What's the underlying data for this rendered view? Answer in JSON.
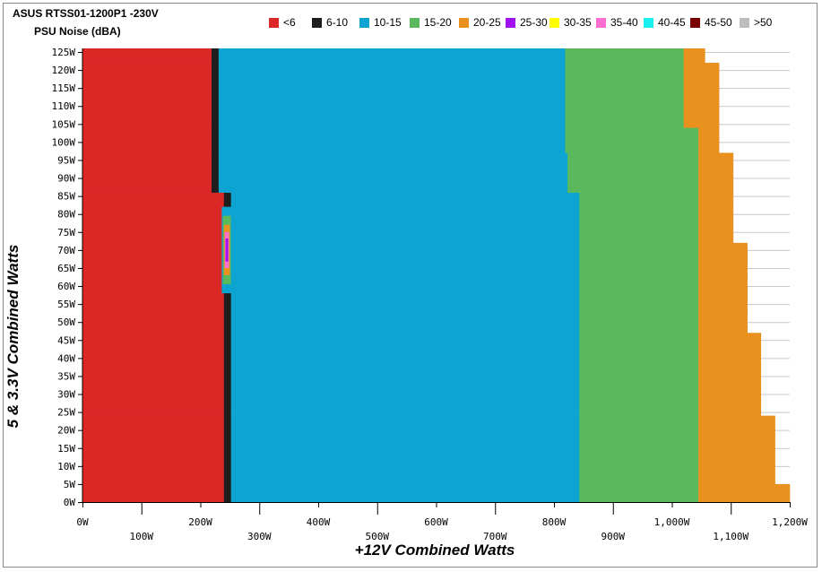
{
  "chart_data": {
    "type": "heatmap",
    "title": "ASUS RTSS01-1200P1 -230V",
    "subtitle": "PSU Noise (dBA)",
    "xlabel": "+12V Combined Watts",
    "ylabel": "5 & 3.3V Combined Watts",
    "xlim": [
      0,
      1200
    ],
    "ylim": [
      0,
      125
    ],
    "x_ticks": [
      0,
      100,
      200,
      300,
      400,
      500,
      600,
      700,
      800,
      900,
      1000,
      1100,
      1200
    ],
    "x_tick_labels": [
      "0W",
      "100W",
      "200W",
      "300W",
      "400W",
      "500W",
      "600W",
      "700W",
      "800W",
      "900W",
      "1,000W",
      "1,100W",
      "1,200W"
    ],
    "y_ticks": [
      0,
      5,
      10,
      15,
      20,
      25,
      30,
      35,
      40,
      45,
      50,
      55,
      60,
      65,
      70,
      75,
      80,
      85,
      90,
      95,
      100,
      105,
      110,
      115,
      120,
      125
    ],
    "y_tick_labels": [
      "0W",
      "5W",
      "10W",
      "15W",
      "20W",
      "25W",
      "30W",
      "35W",
      "40W",
      "45W",
      "50W",
      "55W",
      "60W",
      "65W",
      "70W",
      "75W",
      "80W",
      "85W",
      "90W",
      "95W",
      "100W",
      "105W",
      "110W",
      "115W",
      "120W",
      "125W"
    ],
    "grid": true,
    "legend_position": "top",
    "legend": [
      {
        "label": "<6",
        "color": "#dc2727"
      },
      {
        "label": "6-10",
        "color": "#1e1e1e"
      },
      {
        "label": "10-15",
        "color": "#0ea4d2"
      },
      {
        "label": "15-20",
        "color": "#5ab95c"
      },
      {
        "label": "20-25",
        "color": "#e8911e"
      },
      {
        "label": "25-30",
        "color": "#a013f0"
      },
      {
        "label": "30-35",
        "color": "#ffff00"
      },
      {
        "label": "35-40",
        "color": "#ff6fcf"
      },
      {
        "label": "40-45",
        "color": "#18f0f0"
      },
      {
        "label": "45-50",
        "color": "#7a0000"
      },
      {
        "label": ">50",
        "color": "#bdbdbd"
      }
    ],
    "zones_by_load": [
      {
        "y_range": [
          0,
          5
        ],
        "boundaries": [
          {
            "band": "<6",
            "x_to": 240
          },
          {
            "band": "6-10",
            "x_to": 252
          },
          {
            "band": "10-15",
            "x_to": 843
          },
          {
            "band": "15-20",
            "x_to": 1045
          },
          {
            "band": "20-25",
            "x_to": 1175
          },
          {
            "band": "20-25",
            "x_to": 1200
          }
        ]
      },
      {
        "y_range": [
          5,
          24
        ],
        "boundaries": [
          {
            "band": "<6",
            "x_to": 240
          },
          {
            "band": "6-10",
            "x_to": 252
          },
          {
            "band": "10-15",
            "x_to": 843
          },
          {
            "band": "15-20",
            "x_to": 1045
          },
          {
            "band": "20-25",
            "x_to": 1175
          }
        ]
      },
      {
        "y_range": [
          24,
          47
        ],
        "boundaries": [
          {
            "band": "<6",
            "x_to": 240
          },
          {
            "band": "6-10",
            "x_to": 252
          },
          {
            "band": "10-15",
            "x_to": 843
          },
          {
            "band": "15-20",
            "x_to": 1045
          },
          {
            "band": "20-25",
            "x_to": 1151
          }
        ]
      },
      {
        "y_range": [
          47,
          72
        ],
        "boundaries": [
          {
            "band": "<6",
            "x_to": 240
          },
          {
            "band": "6-10",
            "x_to": 252
          },
          {
            "band": "10-15",
            "x_to": 843
          },
          {
            "band": "15-20",
            "x_to": 1045
          },
          {
            "band": "20-25",
            "x_to": 1128
          }
        ]
      },
      {
        "y_range": [
          72,
          86
        ],
        "boundaries": [
          {
            "band": "<6",
            "x_to": 240
          },
          {
            "band": "6-10",
            "x_to": 252
          },
          {
            "band": "10-15",
            "x_to": 843
          },
          {
            "band": "15-20",
            "x_to": 1045
          },
          {
            "band": "20-25",
            "x_to": 1104
          }
        ]
      },
      {
        "y_range": [
          86,
          97
        ],
        "boundaries": [
          {
            "band": "<6",
            "x_to": 219
          },
          {
            "band": "6-10",
            "x_to": 231
          },
          {
            "band": "10-15",
            "x_to": 823
          },
          {
            "band": "15-20",
            "x_to": 1045
          },
          {
            "band": "20-25",
            "x_to": 1104
          }
        ]
      },
      {
        "y_range": [
          97,
          104
        ],
        "boundaries": [
          {
            "band": "<6",
            "x_to": 219
          },
          {
            "band": "6-10",
            "x_to": 231
          },
          {
            "band": "10-15",
            "x_to": 819
          },
          {
            "band": "15-20",
            "x_to": 1045
          },
          {
            "band": "20-25",
            "x_to": 1080
          }
        ]
      },
      {
        "y_range": [
          104,
          122
        ],
        "boundaries": [
          {
            "band": "<6",
            "x_to": 219
          },
          {
            "band": "6-10",
            "x_to": 231
          },
          {
            "band": "10-15",
            "x_to": 819
          },
          {
            "band": "15-20",
            "x_to": 1020
          },
          {
            "band": "20-25",
            "x_to": 1080
          }
        ]
      },
      {
        "y_range": [
          122,
          126
        ],
        "boundaries": [
          {
            "band": "<6",
            "x_to": 219
          },
          {
            "band": "6-10",
            "x_to": 231
          },
          {
            "band": "10-15",
            "x_to": 819
          },
          {
            "band": "15-20",
            "x_to": 1020
          },
          {
            "band": "20-25",
            "x_to": 1056
          }
        ]
      }
    ],
    "hotspot": {
      "x": 245,
      "y": 70,
      "center_band": "25-30"
    }
  }
}
